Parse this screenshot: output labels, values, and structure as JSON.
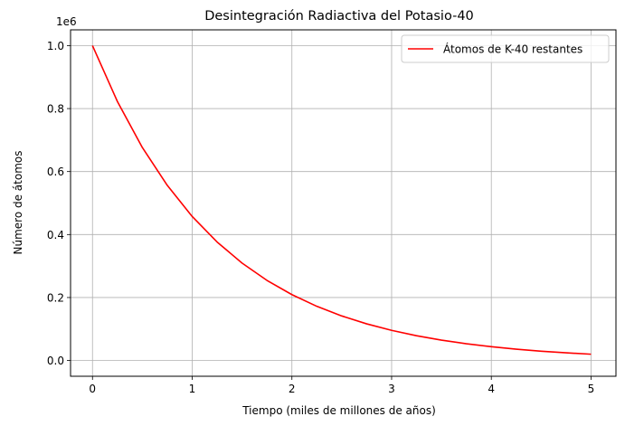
{
  "chart_data": {
    "type": "line",
    "title": "Desintegración Radiactiva del Potasio-40",
    "xlabel": "Tiempo (miles de millones de años)",
    "ylabel": "Número de átomos",
    "y_offset_label": "1e6",
    "xlim": [
      -0.22,
      5.25
    ],
    "ylim": [
      -0.05,
      1.05
    ],
    "x_ticks": [
      0,
      1,
      2,
      3,
      4,
      5
    ],
    "x_tick_labels": [
      "0",
      "1",
      "2",
      "3",
      "4",
      "5"
    ],
    "y_ticks": [
      0.0,
      0.2,
      0.4,
      0.6,
      0.8,
      1.0
    ],
    "y_tick_labels": [
      "0.0",
      "0.2",
      "0.4",
      "0.6",
      "0.8",
      "1.0"
    ],
    "grid": true,
    "legend_position": "upper right",
    "series": [
      {
        "name": "Átomos de K-40 restantes",
        "color": "#ff0000",
        "x": [
          0,
          0.25,
          0.5,
          0.75,
          1,
          1.25,
          1.5,
          1.75,
          2,
          2.25,
          2.5,
          2.75,
          3,
          3.25,
          3.5,
          3.75,
          4,
          4.25,
          4.5,
          4.75,
          5
        ],
        "y": [
          1.0,
          0.8224,
          0.6763,
          0.5562,
          0.4574,
          0.3762,
          0.3094,
          0.2544,
          0.2092,
          0.1721,
          0.1415,
          0.1164,
          0.0957,
          0.0787,
          0.0647,
          0.0532,
          0.0438,
          0.036,
          0.0296,
          0.0244,
          0.02
        ]
      }
    ]
  }
}
